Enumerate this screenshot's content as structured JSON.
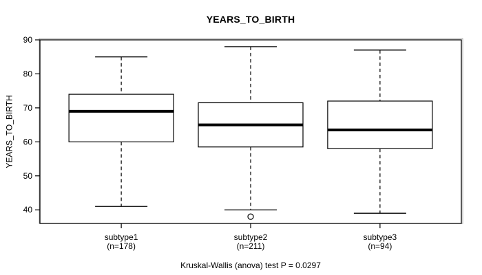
{
  "chart_data": {
    "type": "boxplot",
    "title": "YEARS_TO_BIRTH",
    "ylabel": "YEARS_TO_BIRTH",
    "xlabel": "",
    "footer": "Kruskal-Wallis (anova) test P = 0.0297",
    "ylim": [
      36,
      90
    ],
    "yticks": [
      40,
      50,
      60,
      70,
      80,
      90
    ],
    "grid": false,
    "legend_position": "none",
    "line_color": "#000000",
    "box_fill": "#ffffff",
    "groups": [
      {
        "label": "subtype1",
        "sublabel": "(n=178)",
        "n": 178,
        "whisker_low": 41,
        "q1": 60,
        "median": 69,
        "q3": 74,
        "whisker_high": 85,
        "outliers": []
      },
      {
        "label": "subtype2",
        "sublabel": "(n=211)",
        "n": 211,
        "whisker_low": 40,
        "q1": 58.5,
        "median": 65,
        "q3": 71.5,
        "whisker_high": 88,
        "outliers": [
          38
        ]
      },
      {
        "label": "subtype3",
        "sublabel": "(n=94)",
        "n": 94,
        "whisker_low": 39,
        "q1": 58,
        "median": 63.5,
        "q3": 72,
        "whisker_high": 87,
        "outliers": []
      }
    ]
  }
}
